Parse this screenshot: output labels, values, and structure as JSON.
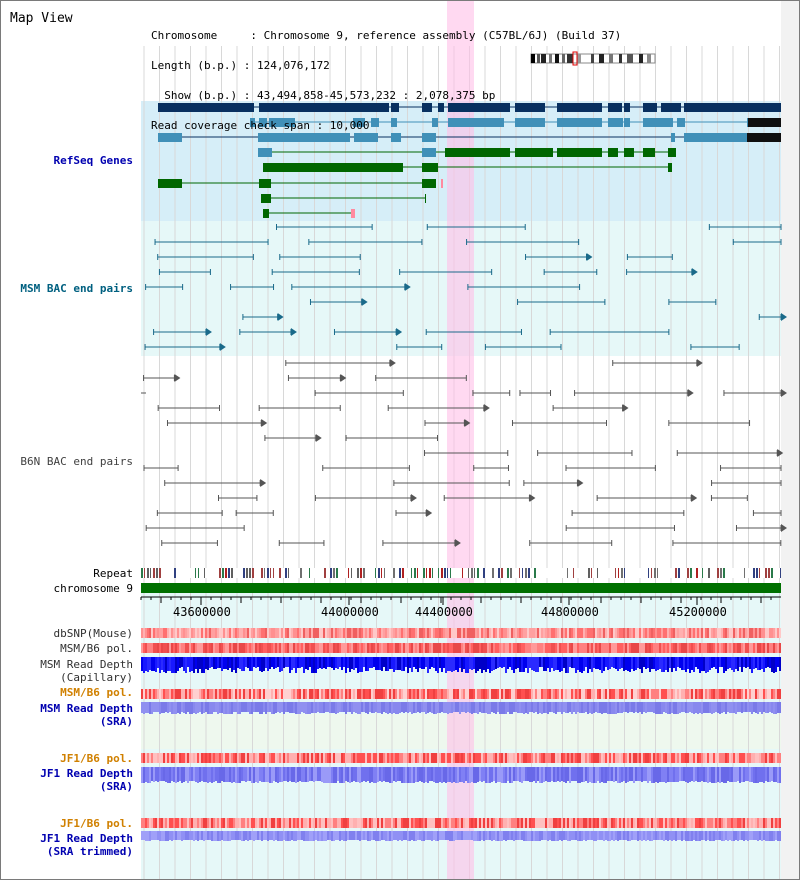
{
  "view": {
    "title": "Map View"
  },
  "header": {
    "lines": [
      "Chromosome     : Chromosome 9, reference assembly (C57BL/6J) (Build 37)",
      "Length (b.p.) : 124,076,172",
      "  Show (b.p.) : 43,494,858-45,573,232 : 2,078,375 bp",
      "Read coverage check span : 10,000"
    ]
  },
  "tracks": {
    "refseq": {
      "label": "RefSeq Genes",
      "color": "#0000b0"
    },
    "msm_bac": {
      "label": "MSM BAC end pairs",
      "color": "#006080"
    },
    "b6n_bac": {
      "label": "B6N BAC end pairs",
      "color": "#404040"
    },
    "repeat": {
      "label": "Repeat",
      "color": "#000000"
    },
    "chromosome": {
      "label": "chromosome 9",
      "color": "#000000"
    },
    "dbsnp": {
      "label": "dbSNP(Mouse)",
      "color": "#303030"
    },
    "msm_b6_pol": {
      "label": "MSM/B6 pol.",
      "color": "#303030"
    },
    "msm_depth_cap": {
      "label_line1": "MSM Read Depth",
      "label_line2": "(Capillary)",
      "color": "#303030"
    },
    "msm_b6_pol2": {
      "label": "MSM/B6 pol.",
      "color": "#d08000"
    },
    "msm_depth_sra": {
      "label_line1": "MSM Read Depth",
      "label_line2": "(SRA)",
      "color": "#0000b0"
    },
    "jf1_b6_pol": {
      "label": "JF1/B6 pol.",
      "color": "#d08000"
    },
    "jf1_depth_sra": {
      "label_line1": "JF1 Read Depth",
      "label_line2": "(SRA)",
      "color": "#0000b0"
    },
    "jf1_b6_pol2": {
      "label": "JF1/B6 pol.",
      "color": "#d08000"
    },
    "jf1_depth_trim": {
      "label_line1": "JF1 Read Depth",
      "label_line2": "(SRA trimmed)",
      "color": "#0000b0"
    }
  },
  "axis": {
    "ticks": [
      "43600000",
      "44000000",
      "44400000",
      "44800000",
      "45200000"
    ]
  }
}
